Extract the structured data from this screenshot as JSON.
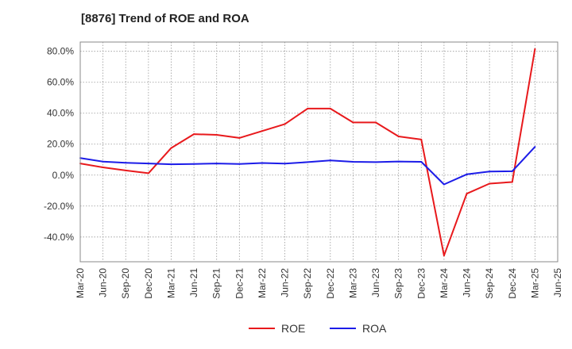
{
  "chart_data": {
    "type": "line",
    "title": "[8876]  Trend of ROE and ROA",
    "xlabel": "",
    "ylabel": "",
    "x_ticks": [
      "Mar-20",
      "Jun-20",
      "Sep-20",
      "Dec-20",
      "Mar-21",
      "Jun-21",
      "Sep-21",
      "Dec-21",
      "Mar-22",
      "Jun-22",
      "Sep-22",
      "Dec-22",
      "Mar-23",
      "Jun-23",
      "Sep-23",
      "Dec-23",
      "Mar-24",
      "Jun-24",
      "Sep-24",
      "Dec-24",
      "Mar-25",
      "Jun-25"
    ],
    "y_ticks": [
      "-40.0%",
      "-20.0%",
      "0.0%",
      "20.0%",
      "40.0%",
      "60.0%",
      "80.0%"
    ],
    "ylim": [
      -56,
      86
    ],
    "grid": true,
    "legend_position": "bottom-center",
    "series": [
      {
        "name": "ROE",
        "color": "#e8191c",
        "x": [
          "Mar-20",
          "Jun-20",
          "Sep-20",
          "Dec-20",
          "Mar-21",
          "Jun-21",
          "Sep-21",
          "Dec-21",
          "Mar-22",
          "Jun-22",
          "Sep-22",
          "Dec-22",
          "Mar-23",
          "Jun-23",
          "Sep-23",
          "Dec-23",
          "Mar-24",
          "Jun-24",
          "Sep-24",
          "Dec-24",
          "Mar-25"
        ],
        "values": [
          7.5,
          5.0,
          3.0,
          1.2,
          17.5,
          26.5,
          26.0,
          24.0,
          28.5,
          33.0,
          43.0,
          43.0,
          34.0,
          34.0,
          25.0,
          23.0,
          -52.0,
          -12.0,
          -5.5,
          -4.5,
          81.5
        ]
      },
      {
        "name": "ROA",
        "color": "#1c1ce8",
        "x": [
          "Mar-20",
          "Jun-20",
          "Sep-20",
          "Dec-20",
          "Mar-21",
          "Jun-21",
          "Sep-21",
          "Dec-21",
          "Mar-22",
          "Jun-22",
          "Sep-22",
          "Dec-22",
          "Mar-23",
          "Jun-23",
          "Sep-23",
          "Dec-23",
          "Mar-24",
          "Jun-24",
          "Sep-24",
          "Dec-24",
          "Mar-25"
        ],
        "values": [
          11.0,
          8.7,
          8.0,
          7.5,
          7.0,
          7.2,
          7.5,
          7.2,
          7.8,
          7.4,
          8.4,
          9.5,
          8.6,
          8.4,
          8.8,
          8.6,
          -6.0,
          0.5,
          2.3,
          2.5,
          18.3
        ]
      }
    ]
  }
}
